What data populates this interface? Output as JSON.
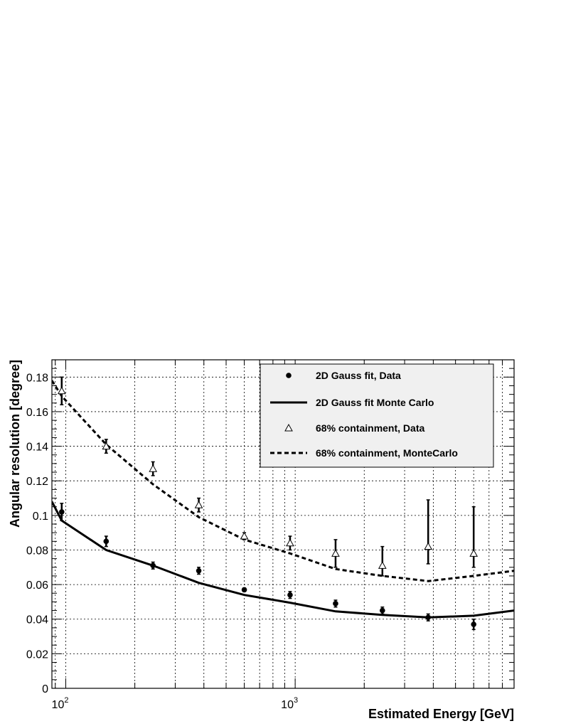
{
  "chart_data": {
    "type": "scatter",
    "xlabel": "Estimated Energy [GeV]",
    "ylabel": "Angular resolution [degree]",
    "xscale": "log",
    "xlim": [
      87,
      9000
    ],
    "ylim": [
      0,
      0.19
    ],
    "grid": true,
    "legend_placement": "top-right",
    "x_tick_labels": [
      {
        "value": 100,
        "base": "10",
        "exp": "2"
      },
      {
        "value": 1000,
        "base": "10",
        "exp": "3"
      }
    ],
    "y_ticks": [
      {
        "value": 0,
        "label": "0"
      },
      {
        "value": 0.02,
        "label": "0.02"
      },
      {
        "value": 0.04,
        "label": "0.04"
      },
      {
        "value": 0.06,
        "label": "0.06"
      },
      {
        "value": 0.08,
        "label": "0.08"
      },
      {
        "value": 0.1,
        "label": "0.1"
      },
      {
        "value": 0.12,
        "label": "0.12"
      },
      {
        "value": 0.14,
        "label": "0.14"
      },
      {
        "value": 0.16,
        "label": "0.16"
      },
      {
        "value": 0.18,
        "label": "0.18"
      }
    ],
    "series": [
      {
        "name": "2D Gauss fit, Data",
        "style": "points-filled-circle",
        "color": "#000000",
        "x": [
          96,
          150,
          240,
          380,
          600,
          950,
          1500,
          2400,
          3800,
          6000
        ],
        "y": [
          0.102,
          0.085,
          0.071,
          0.068,
          0.057,
          0.054,
          0.049,
          0.045,
          0.041,
          0.037
        ],
        "err_low": [
          0.005,
          0.003,
          0.002,
          0.002,
          0.001,
          0.002,
          0.002,
          0.002,
          0.002,
          0.003
        ],
        "err_high": [
          0.005,
          0.003,
          0.002,
          0.002,
          0.001,
          0.002,
          0.002,
          0.002,
          0.002,
          0.003
        ]
      },
      {
        "name": "2D Gauss fit Monte Carlo",
        "style": "line-solid",
        "color": "#000000",
        "x": [
          87,
          96,
          150,
          240,
          380,
          600,
          950,
          1500,
          2400,
          3800,
          6000,
          9000
        ],
        "y": [
          0.108,
          0.097,
          0.08,
          0.071,
          0.061,
          0.054,
          0.0495,
          0.0445,
          0.0425,
          0.041,
          0.042,
          0.045
        ]
      },
      {
        "name": "68% containment, Data",
        "style": "points-open-triangle",
        "color": "#000000",
        "x": [
          96,
          150,
          240,
          380,
          600,
          950,
          1500,
          2400,
          3800,
          6000
        ],
        "y": [
          0.172,
          0.14,
          0.127,
          0.106,
          0.088,
          0.084,
          0.078,
          0.071,
          0.082,
          0.078
        ],
        "err_low": [
          0.008,
          0.004,
          0.004,
          0.004,
          0.002,
          0.004,
          0.008,
          0.006,
          0.01,
          0.008
        ],
        "err_high": [
          0.008,
          0.004,
          0.004,
          0.004,
          0.002,
          0.004,
          0.008,
          0.011,
          0.027,
          0.027
        ]
      },
      {
        "name": "68% containment, MonteCarlo",
        "style": "line-dashed",
        "color": "#000000",
        "x": [
          87,
          96,
          150,
          240,
          380,
          600,
          950,
          1500,
          2400,
          3800,
          6000,
          9000
        ],
        "y": [
          0.178,
          0.169,
          0.141,
          0.118,
          0.099,
          0.086,
          0.078,
          0.069,
          0.065,
          0.062,
          0.065,
          0.068
        ]
      }
    ]
  }
}
